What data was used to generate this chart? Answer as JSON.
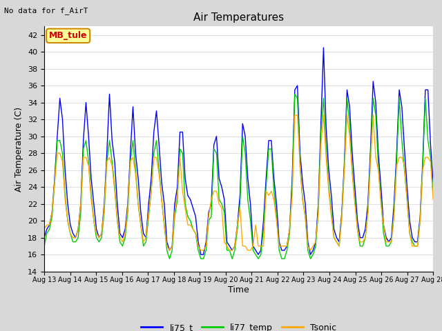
{
  "title": "Air Temperatures",
  "subtitle": "No data for f_AirT",
  "xlabel": "Time",
  "ylabel": "Air Temperature (C)",
  "ylim": [
    14,
    43
  ],
  "yticks": [
    14,
    16,
    18,
    20,
    22,
    24,
    26,
    28,
    30,
    32,
    34,
    36,
    38,
    40,
    42
  ],
  "xtick_labels": [
    "Aug 13",
    "Aug 14",
    "Aug 15",
    "Aug 16",
    "Aug 17",
    "Aug 18",
    "Aug 19",
    "Aug 20",
    "Aug 21",
    "Aug 22",
    "Aug 23",
    "Aug 24",
    "Aug 25",
    "Aug 26",
    "Aug 27",
    "Aug 28"
  ],
  "legend_entries": [
    "li75_t",
    "li77_temp",
    "Tsonic"
  ],
  "legend_colors": [
    "#0000ff",
    "#00cc00",
    "#ffaa00"
  ],
  "fig_bg_color": "#d8d8d8",
  "plot_bg_color": "#ffffff",
  "grid_color": "#e0e0e0",
  "annotation_box_text": "MB_tule",
  "annotation_box_color": "#ffff99",
  "annotation_box_edge_color": "#cc8800",
  "annotation_text_color": "#cc0000",
  "li75_t": [
    18.0,
    19.0,
    19.5,
    21.0,
    25.0,
    30.0,
    34.5,
    32.0,
    26.0,
    22.0,
    19.5,
    18.5,
    18.0,
    19.0,
    22.0,
    29.5,
    34.0,
    30.0,
    25.0,
    22.0,
    19.0,
    18.0,
    18.5,
    22.0,
    28.0,
    35.0,
    29.5,
    27.0,
    22.0,
    18.5,
    18.0,
    19.0,
    22.0,
    28.0,
    33.5,
    28.0,
    25.0,
    21.0,
    18.5,
    18.0,
    22.0,
    25.0,
    30.5,
    33.0,
    29.0,
    24.5,
    22.0,
    17.5,
    16.5,
    17.0,
    22.0,
    24.0,
    30.5,
    30.5,
    25.0,
    23.0,
    22.5,
    21.5,
    20.5,
    17.5,
    16.0,
    16.0,
    17.5,
    21.0,
    22.0,
    29.0,
    30.0,
    25.0,
    24.0,
    22.5,
    17.5,
    17.0,
    16.5,
    17.0,
    19.5,
    23.0,
    31.5,
    30.0,
    25.0,
    22.0,
    17.0,
    16.5,
    16.0,
    16.5,
    20.0,
    25.0,
    29.5,
    29.5,
    25.0,
    22.0,
    17.5,
    16.5,
    16.5,
    17.0,
    19.0,
    25.0,
    35.5,
    36.0,
    28.0,
    24.5,
    22.0,
    17.5,
    16.0,
    16.5,
    17.5,
    22.0,
    31.5,
    40.5,
    31.0,
    26.0,
    23.0,
    19.0,
    18.0,
    17.5,
    21.0,
    27.0,
    35.5,
    33.5,
    28.0,
    24.0,
    20.0,
    18.0,
    18.0,
    19.0,
    22.0,
    28.5,
    36.5,
    34.0,
    28.0,
    24.0,
    19.5,
    18.0,
    17.5,
    18.0,
    22.0,
    28.0,
    35.5,
    33.5,
    28.5,
    24.0,
    20.0,
    18.0,
    17.5,
    17.5,
    20.5,
    27.0,
    35.5,
    35.5,
    29.0,
    24.5
  ],
  "li77_temp": [
    17.0,
    18.5,
    19.0,
    20.5,
    24.5,
    29.5,
    29.5,
    28.0,
    23.0,
    20.0,
    18.5,
    17.5,
    17.5,
    18.0,
    21.0,
    28.5,
    29.5,
    27.0,
    23.0,
    20.0,
    18.0,
    17.5,
    18.0,
    21.0,
    27.0,
    29.5,
    27.0,
    24.0,
    20.0,
    17.5,
    17.0,
    18.0,
    21.0,
    27.0,
    29.5,
    26.0,
    22.0,
    19.5,
    17.0,
    17.5,
    20.5,
    23.5,
    28.0,
    29.5,
    26.0,
    22.5,
    19.5,
    16.5,
    15.5,
    16.5,
    20.5,
    22.5,
    28.5,
    28.0,
    22.0,
    20.5,
    20.0,
    19.0,
    18.5,
    16.5,
    15.5,
    15.5,
    16.5,
    20.0,
    20.5,
    28.5,
    28.0,
    22.5,
    22.0,
    21.0,
    16.5,
    16.5,
    15.5,
    16.5,
    19.0,
    22.0,
    30.0,
    28.0,
    22.5,
    20.0,
    16.5,
    16.0,
    15.5,
    16.0,
    19.0,
    24.0,
    28.5,
    28.5,
    23.5,
    20.5,
    16.5,
    15.5,
    15.5,
    16.5,
    18.5,
    24.0,
    35.0,
    34.5,
    26.5,
    22.5,
    20.5,
    16.5,
    15.5,
    16.0,
    17.0,
    21.0,
    30.5,
    34.5,
    28.5,
    24.0,
    21.0,
    18.0,
    17.5,
    17.0,
    20.5,
    26.5,
    34.5,
    31.5,
    26.0,
    22.5,
    19.0,
    17.0,
    17.0,
    18.0,
    21.0,
    27.5,
    34.5,
    32.5,
    26.5,
    22.5,
    18.5,
    17.0,
    17.0,
    17.5,
    21.0,
    27.0,
    34.5,
    29.5,
    26.0,
    22.5,
    18.5,
    17.5,
    17.0,
    17.0,
    20.0,
    26.5,
    34.5,
    29.5,
    27.5,
    23.0
  ],
  "tsonic": [
    19.0,
    19.5,
    19.5,
    21.0,
    24.5,
    28.0,
    28.0,
    27.0,
    22.5,
    20.0,
    18.5,
    18.0,
    18.0,
    19.0,
    22.0,
    27.5,
    27.5,
    26.5,
    22.5,
    20.0,
    18.5,
    18.0,
    18.5,
    21.5,
    27.0,
    27.5,
    26.5,
    23.5,
    20.0,
    18.0,
    17.5,
    18.5,
    21.5,
    27.0,
    27.5,
    25.5,
    22.0,
    19.5,
    17.5,
    18.0,
    21.0,
    23.5,
    27.5,
    27.5,
    25.5,
    22.5,
    19.5,
    17.0,
    16.5,
    17.0,
    21.0,
    23.0,
    27.5,
    23.5,
    21.5,
    19.5,
    19.5,
    19.0,
    18.5,
    17.0,
    16.5,
    16.5,
    17.0,
    20.5,
    22.5,
    23.5,
    23.5,
    22.0,
    21.5,
    17.5,
    17.0,
    16.5,
    16.5,
    17.0,
    19.5,
    21.5,
    17.0,
    17.0,
    16.5,
    16.5,
    17.0,
    19.5,
    17.0,
    17.0,
    17.0,
    23.5,
    23.0,
    23.5,
    22.5,
    20.0,
    17.0,
    17.0,
    17.0,
    17.0,
    19.0,
    23.0,
    32.5,
    32.5,
    26.5,
    22.5,
    20.5,
    17.0,
    16.5,
    17.0,
    17.5,
    21.0,
    29.0,
    32.5,
    27.5,
    23.5,
    20.5,
    18.0,
    17.5,
    17.0,
    20.5,
    26.0,
    32.5,
    30.0,
    25.5,
    22.0,
    19.0,
    17.5,
    17.5,
    18.0,
    21.0,
    27.0,
    32.5,
    27.5,
    26.0,
    22.0,
    19.5,
    17.5,
    17.5,
    17.5,
    20.5,
    26.5,
    27.5,
    27.5,
    26.5,
    22.5,
    18.5,
    17.0,
    17.0,
    17.0,
    20.0,
    26.0,
    27.5,
    27.5,
    27.0,
    22.5
  ]
}
